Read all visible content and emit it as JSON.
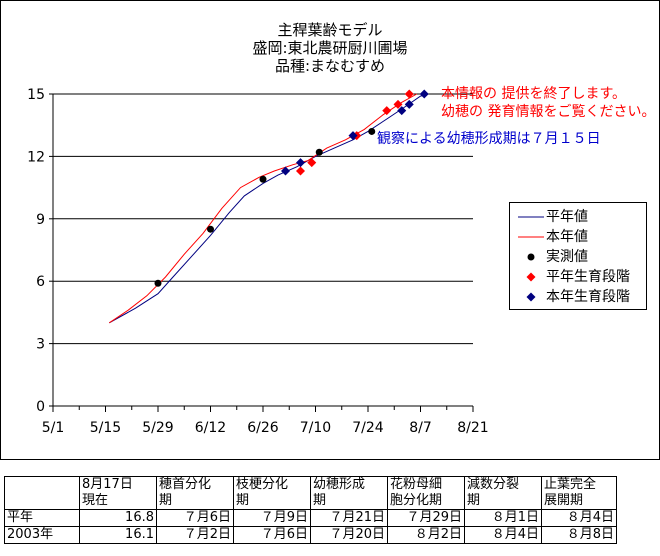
{
  "chart_data": {
    "type": "line",
    "title": [
      "主稈葉齢モデル",
      "盛岡:東北農研厨川圃場",
      "品種:まなむすめ"
    ],
    "xlabel": "",
    "ylabel": "",
    "ylim": [
      0,
      15
    ],
    "yticks": [
      "0",
      "3",
      "6",
      "9",
      "12",
      "15"
    ],
    "xticks": [
      "5/1",
      "5/15",
      "5/29",
      "6/12",
      "6/26",
      "7/10",
      "7/24",
      "8/7",
      "8/21"
    ],
    "xlim": [
      "5/1",
      "8/21"
    ],
    "grid": "horizontal",
    "legend_position": "right",
    "series": [
      {
        "name": "平年値",
        "kind": "line",
        "color": "#000080",
        "points": [
          [
            "5/16",
            4.0
          ],
          [
            "5/23",
            4.7
          ],
          [
            "5/29",
            5.4
          ],
          [
            "6/2",
            6.2
          ],
          [
            "6/7",
            7.2
          ],
          [
            "6/12",
            8.2
          ],
          [
            "6/17",
            9.3
          ],
          [
            "6/21",
            10.1
          ],
          [
            "6/26",
            10.7
          ],
          [
            "6/30",
            11.1
          ],
          [
            "7/5",
            11.5
          ],
          [
            "7/10",
            12.0
          ],
          [
            "7/15",
            12.4
          ],
          [
            "7/20",
            12.8
          ],
          [
            "7/24",
            13.2
          ],
          [
            "7/29",
            13.8
          ],
          [
            "8/3",
            14.4
          ],
          [
            "8/7",
            14.9
          ],
          [
            "8/9",
            15.0
          ]
        ]
      },
      {
        "name": "本年値",
        "kind": "line",
        "color": "#ff0000",
        "points": [
          [
            "5/16",
            4.0
          ],
          [
            "5/21",
            4.6
          ],
          [
            "5/26",
            5.3
          ],
          [
            "5/31",
            6.2
          ],
          [
            "6/5",
            7.3
          ],
          [
            "6/10",
            8.3
          ],
          [
            "6/15",
            9.5
          ],
          [
            "6/20",
            10.5
          ],
          [
            "6/25",
            11.0
          ],
          [
            "6/29",
            11.3
          ],
          [
            "7/4",
            11.6
          ],
          [
            "7/8",
            11.8
          ],
          [
            "7/13",
            12.4
          ],
          [
            "7/18",
            12.8
          ],
          [
            "7/23",
            13.3
          ],
          [
            "7/28",
            14.0
          ],
          [
            "8/2",
            14.6
          ],
          [
            "8/6",
            15.0
          ]
        ]
      },
      {
        "name": "実測値",
        "kind": "marker",
        "marker": "circle",
        "color": "#000000",
        "points": [
          [
            "5/29",
            5.9
          ],
          [
            "6/12",
            8.5
          ],
          [
            "6/26",
            10.9
          ],
          [
            "7/11",
            12.2
          ],
          [
            "7/25",
            13.2
          ]
        ]
      },
      {
        "name": "平年生育段階",
        "kind": "marker",
        "marker": "diamond",
        "color": "#ff0000",
        "points": [
          [
            "7/6",
            11.3
          ],
          [
            "7/9",
            11.7
          ],
          [
            "7/21",
            13.0
          ],
          [
            "7/29",
            14.2
          ],
          [
            "8/1",
            14.5
          ],
          [
            "8/4",
            15.0
          ]
        ]
      },
      {
        "name": "本年生育段階",
        "kind": "marker",
        "marker": "diamond",
        "color": "#000080",
        "points": [
          [
            "7/2",
            11.3
          ],
          [
            "7/6",
            11.7
          ],
          [
            "7/20",
            13.0
          ],
          [
            "8/2",
            14.2
          ],
          [
            "8/4",
            14.5
          ],
          [
            "8/8",
            15.0
          ]
        ]
      }
    ],
    "annotations": [
      {
        "text": "本情報の 提供を終了します。",
        "color": "#ff0000"
      },
      {
        "text": "幼穂の 発育情報をご覧ください。",
        "color": "#ff0000"
      },
      {
        "text": "観察による幼穂形成期は７月１５日",
        "color": "#0000cc"
      }
    ]
  },
  "table": {
    "header": [
      "",
      "8月17日\n現在",
      "穂首分化\n期",
      "枝梗分化\n期",
      "幼穂形成\n期",
      "花粉母細\n胞分化期",
      "減数分裂\n期",
      "止葉完全\n展開期"
    ],
    "rows": [
      [
        "平年",
        "16.8",
        "７月6日",
        "７月9日",
        "７月21日",
        "７月29日",
        "８月1日",
        "８月4日"
      ],
      [
        "2003年",
        "16.1",
        "７月2日",
        "７月6日",
        "７月20日",
        "８月2日",
        "８月4日",
        "８月8日"
      ]
    ]
  }
}
